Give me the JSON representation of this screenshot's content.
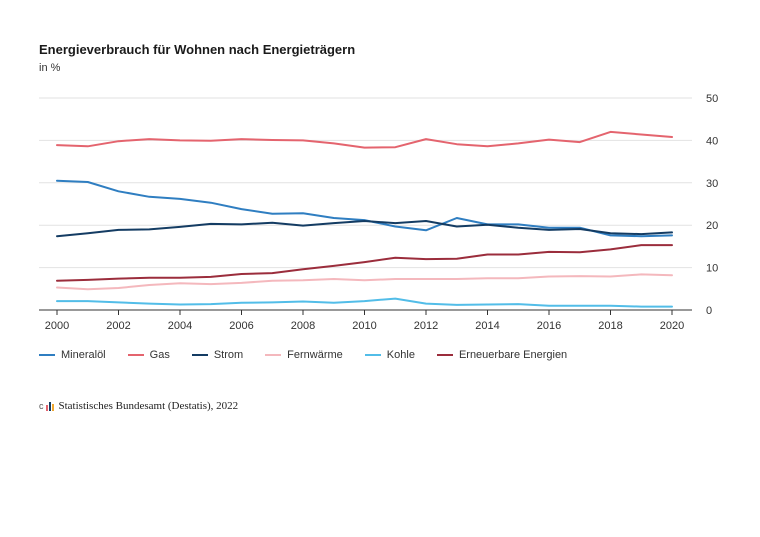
{
  "chart_data": {
    "type": "line",
    "title": "Energieverbrauch für Wohnen nach Energieträgern",
    "subtitle": "in %",
    "xlabel": "",
    "ylabel": "",
    "x": [
      2000,
      2001,
      2002,
      2003,
      2004,
      2005,
      2006,
      2007,
      2008,
      2009,
      2010,
      2011,
      2012,
      2013,
      2014,
      2015,
      2016,
      2017,
      2018,
      2019,
      2020
    ],
    "xticks": [
      "2000",
      "2002",
      "2004",
      "2006",
      "2008",
      "2010",
      "2012",
      "2014",
      "2016",
      "2018",
      "2020"
    ],
    "yticks": [
      "0",
      "10",
      "20",
      "30",
      "40",
      "50"
    ],
    "xlim": [
      2000,
      2020
    ],
    "ylim": [
      0,
      50
    ],
    "grid": true,
    "legend_position": "bottom",
    "series": [
      {
        "name": "Mineralöl",
        "color": "#2f7ec1",
        "values": [
          30.5,
          30.2,
          28.0,
          26.7,
          26.2,
          25.3,
          23.8,
          22.7,
          22.8,
          21.7,
          21.2,
          19.7,
          18.8,
          21.7,
          20.2,
          20.2,
          19.4,
          19.4,
          17.6,
          17.4,
          17.6
        ]
      },
      {
        "name": "Gas",
        "color": "#e4646e",
        "values": [
          38.9,
          38.6,
          39.8,
          40.3,
          40.0,
          39.9,
          40.3,
          40.1,
          40.0,
          39.3,
          38.3,
          38.4,
          40.3,
          39.1,
          38.6,
          39.3,
          40.2,
          39.6,
          42.0,
          41.4,
          40.8
        ]
      },
      {
        "name": "Strom",
        "color": "#143c63",
        "values": [
          17.4,
          18.1,
          18.9,
          19.0,
          19.6,
          20.3,
          20.2,
          20.6,
          19.9,
          20.5,
          21.0,
          20.5,
          21.0,
          19.7,
          20.1,
          19.4,
          18.9,
          19.1,
          18.1,
          17.9,
          18.3
        ]
      },
      {
        "name": "Fernwärme",
        "color": "#f4b8bd",
        "values": [
          5.3,
          4.9,
          5.2,
          5.9,
          6.3,
          6.1,
          6.4,
          6.9,
          7.0,
          7.3,
          7.0,
          7.3,
          7.3,
          7.3,
          7.5,
          7.5,
          7.9,
          8.0,
          7.9,
          8.4,
          8.2
        ]
      },
      {
        "name": "Kohle",
        "color": "#52bde8",
        "values": [
          2.1,
          2.1,
          1.8,
          1.5,
          1.3,
          1.4,
          1.7,
          1.8,
          2.0,
          1.7,
          2.1,
          2.7,
          1.5,
          1.2,
          1.3,
          1.4,
          1.0,
          1.0,
          1.0,
          0.8,
          0.8
        ]
      },
      {
        "name": "Erneuerbare Energien",
        "color": "#9b2d3c",
        "values": [
          6.9,
          7.1,
          7.4,
          7.6,
          7.6,
          7.8,
          8.5,
          8.7,
          9.6,
          10.4,
          11.3,
          12.3,
          12.0,
          12.1,
          13.1,
          13.1,
          13.7,
          13.6,
          14.3,
          15.3,
          15.3
        ]
      }
    ]
  },
  "source": {
    "text": "Statistisches Bundesamt (Destatis), 2022",
    "icon": "bar-chart-icon",
    "icon_colors": [
      "#e4646e",
      "#143c63",
      "#f0a830"
    ]
  }
}
